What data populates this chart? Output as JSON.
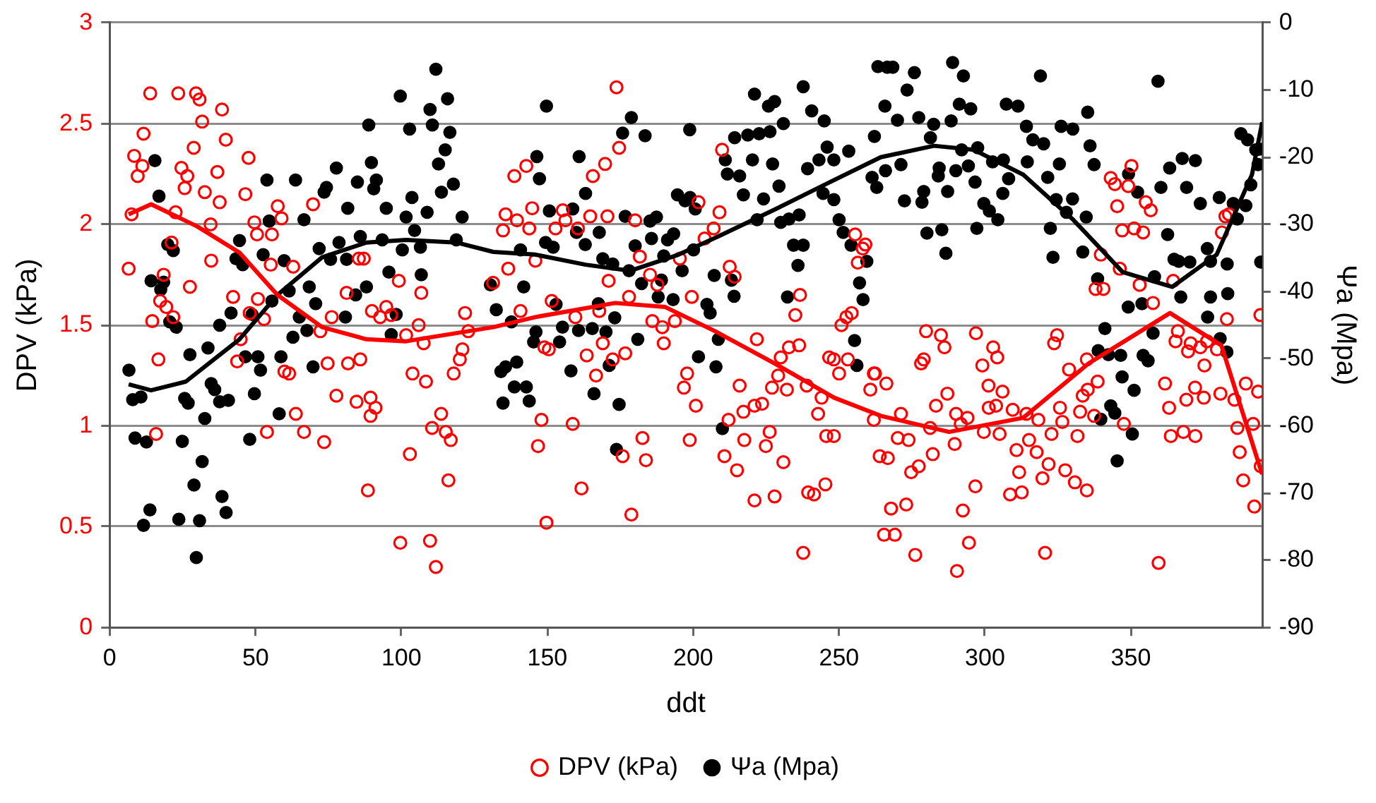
{
  "chart_data": {
    "type": "scatter",
    "xlabel": "ddt",
    "ylabel": "DPV (kPa)",
    "y2label": "Ψa (Mpa)",
    "legend": "bottom",
    "grid": "y",
    "xlim": [
      0,
      395
    ],
    "xticks": [
      0,
      50,
      100,
      150,
      200,
      250,
      300,
      350
    ],
    "ylim": [
      0,
      3
    ],
    "yticks": [
      0,
      0.5,
      1,
      1.5,
      2,
      2.5,
      3
    ],
    "y2lim": [
      -90,
      0
    ],
    "y2ticks": [
      -90,
      -80,
      -70,
      -60,
      -50,
      -40,
      -30,
      -20,
      -10,
      0
    ],
    "series": [
      {
        "name": "DPV (kPa)",
        "color": "#ff0000",
        "marker": "circle-open",
        "x": [
          13.9,
          23.5,
          29.6,
          30.8,
          38.5,
          31.7,
          11.6,
          8.4,
          11.2,
          9.6,
          24.6,
          26.6,
          28.8,
          39.8,
          47.6,
          36.9,
          25.7,
          32.6,
          37.7,
          46.5,
          7.5,
          22.6,
          34.6,
          21.2,
          34.8,
          6.5,
          18.5,
          27.5,
          17.3,
          19.4,
          21.8,
          14.6,
          42.3,
          48,
          44.9,
          16.7,
          43.7,
          15.9,
          53.9,
          49.6,
          50.5,
          55.6,
          57.6,
          58.9,
          55.2,
          52.9,
          50.8,
          59.9,
          61.5,
          63.8,
          66.6,
          73.5,
          69.7,
          62.9,
          76.1,
          72.2,
          74.7,
          77.7,
          81.2,
          85.4,
          87.1,
          81.7,
          85.9,
          84.6,
          89.4,
          91.1,
          89.4,
          88.5,
          89.9,
          92.7,
          94.8,
          96.5,
          99.1,
          99.6,
          101.6,
          105.9,
          106.8,
          107.6,
          103.8,
          108.4,
          102.9,
          109.8,
          111.8,
          110.5,
          113.6,
          115.2,
          116.9,
          116.1,
          117.9,
          120,
          120.9,
          121.8,
          122.9,
          173.7,
          174.6,
          169.8,
          165.6,
          142.8,
          138.7,
          144.8,
          135.7,
          134.8,
          139.6,
          143.8,
          145.9,
          136.6,
          131.4,
          152.8,
          155.3,
          156.2,
          160.5,
          164.7,
          170.6,
          180.1,
          181.7,
          171,
          178,
          151.5,
          159.6,
          167.8,
          140.8,
          149,
          150.5,
          163.5,
          166.7,
          169,
          172.4,
          176.7,
          178.8,
          161.7,
          149.7,
          146.8,
          148,
          158.7,
          182.6,
          183.8,
          175.8,
          185.2,
          187.7,
          186,
          189.4,
          193.7,
          189.9,
          195.4,
          199.5,
          201.8,
          203.9,
          207,
          209,
          209.9,
          212.5,
          214.2,
          197.9,
          196.8,
          200.9,
          198.8,
          210.7,
          215,
          212.1,
          215.9,
          217.2,
          221,
          223.6,
          217.5,
          226.2,
          224.9,
          230.9,
          221,
          227.9,
          221.8,
          227,
          229.1,
          232.1,
          230,
          232.8,
          236.3,
          235,
          236.6,
          238.9,
          242.8,
          244,
          237.7,
          239.4,
          241.4,
          245.3,
          245.6,
          248.2,
          246.6,
          248.2,
          250,
          253,
          250.8,
          252.5,
          254.3,
          255.5,
          258.1,
          256.4,
          260.7,
          262.3,
          263.9,
          265.4,
          259,
          261.9,
          266.2,
          261.9,
          266.7,
          270.1,
          273.8,
          274.7,
          277.3,
          267.8,
          273,
          269.1,
          276.1,
          271.2,
          282.1,
          281.2,
          279.8,
          278.1,
          279,
          284.9,
          286.1,
          283.2,
          287.1,
          290.1,
          291.7,
          294,
          289.6,
          296.7,
          292.4,
          294.5,
          290.4,
          296.9,
          299.1,
          302.8,
          304.2,
          301.2,
          306,
          301.3,
          303.8,
          309.5,
          299.6,
          305,
          310.8,
          311.7,
          308.6,
          312.6,
          315.1,
          317.7,
          319.7,
          321.8,
          327.5,
          330.8,
          334.9,
          320.6,
          314.2,
          318.3,
          322.8,
          325.7,
          326.5,
          331.7,
          332.6,
          337.4,
          333.5,
          335.2,
          338.6,
          328.8,
          334.9,
          323.7,
          324.7,
          347.6,
          339.7,
          337.9,
          340.6,
          343.1,
          344.5,
          350.2,
          349.1,
          345.3,
          347,
          351.1,
          354.2,
          355.1,
          356.8,
          346.2,
          353,
          357.6,
          364.5,
          382.4,
          383.6,
          381.2,
          382.9,
          394.4,
          365.3,
          366.1,
          369.6,
          370.5,
          373.8,
          375.2,
          376.1,
          379.5,
          361.7,
          363.1,
          369,
          372,
          375,
          380.7,
          385.5,
          389.4,
          393.6,
          391.9,
          386.5,
          387.3,
          388.5,
          392.3,
          394.5,
          363.7,
          368,
          372.1,
          359.5
        ],
        "values": [
          2.65,
          2.65,
          2.65,
          2.62,
          2.57,
          2.51,
          2.45,
          2.34,
          2.29,
          2.24,
          2.28,
          2.24,
          2.38,
          2.42,
          2.33,
          2.26,
          2.18,
          2.16,
          2.11,
          2.15,
          2.05,
          2.06,
          2.0,
          1.91,
          1.82,
          1.78,
          1.75,
          1.69,
          1.62,
          1.59,
          1.54,
          1.52,
          1.64,
          1.56,
          1.43,
          1.33,
          1.32,
          0.96,
          0.97,
          2.01,
          1.95,
          1.95,
          2.09,
          2.03,
          1.8,
          1.53,
          1.63,
          1.27,
          1.26,
          1.06,
          0.97,
          0.92,
          2.1,
          1.79,
          1.54,
          1.47,
          1.31,
          1.15,
          1.66,
          1.83,
          1.83,
          1.31,
          1.33,
          1.12,
          1.14,
          1.09,
          1.05,
          0.68,
          1.57,
          1.54,
          1.59,
          1.55,
          1.72,
          0.42,
          1.45,
          1.5,
          1.66,
          1.41,
          1.26,
          1.22,
          0.86,
          0.43,
          0.3,
          0.99,
          1.06,
          0.97,
          0.93,
          0.73,
          1.26,
          1.33,
          1.38,
          1.56,
          1.47,
          2.68,
          2.38,
          2.3,
          2.24,
          2.29,
          2.24,
          2.08,
          2.05,
          1.97,
          2.02,
          1.98,
          1.82,
          1.78,
          1.71,
          1.98,
          2.07,
          2.02,
          1.98,
          2.04,
          2.04,
          2.02,
          1.84,
          1.72,
          1.64,
          1.62,
          1.54,
          1.57,
          1.57,
          1.39,
          1.38,
          1.35,
          1.25,
          1.41,
          1.33,
          1.36,
          0.56,
          0.69,
          0.52,
          0.9,
          1.03,
          1.01,
          0.94,
          0.83,
          0.85,
          1.75,
          1.7,
          1.52,
          1.49,
          1.52,
          1.41,
          1.83,
          1.64,
          2.11,
          1.93,
          1.98,
          2.06,
          2.37,
          1.79,
          1.74,
          1.26,
          1.19,
          1.1,
          0.93,
          0.85,
          0.78,
          1.03,
          1.2,
          1.07,
          1.1,
          1.11,
          0.93,
          0.97,
          0.9,
          0.82,
          0.63,
          0.65,
          1.43,
          1.19,
          1.25,
          1.18,
          1.34,
          1.39,
          1.4,
          1.55,
          1.65,
          1.2,
          1.06,
          1.14,
          0.37,
          0.67,
          0.66,
          0.71,
          0.95,
          0.95,
          1.34,
          1.33,
          1.26,
          1.33,
          1.5,
          1.54,
          1.56,
          1.95,
          1.88,
          1.81,
          1.18,
          1.26,
          0.85,
          0.46,
          1.9,
          1.26,
          1.21,
          1.03,
          0.84,
          0.94,
          0.93,
          0.77,
          0.8,
          0.59,
          0.61,
          0.46,
          0.36,
          1.06,
          0.86,
          0.99,
          1.47,
          1.31,
          1.33,
          1.45,
          1.39,
          1.1,
          1.16,
          1.06,
          1.01,
          1.04,
          0.91,
          0.7,
          0.58,
          0.42,
          0.28,
          1.46,
          1.3,
          1.39,
          1.34,
          1.2,
          1.17,
          1.09,
          1.1,
          1.08,
          0.97,
          0.96,
          0.88,
          0.77,
          0.66,
          0.67,
          0.93,
          0.87,
          0.74,
          0.81,
          0.78,
          0.72,
          0.68,
          0.37,
          1.06,
          1.03,
          0.96,
          1.09,
          1.02,
          0.95,
          1.07,
          1.05,
          1.15,
          1.18,
          1.22,
          1.28,
          1.33,
          1.41,
          1.45,
          1.01,
          1.85,
          1.68,
          1.68,
          2.23,
          2.2,
          2.29,
          2.19,
          2.09,
          1.97,
          1.98,
          1.96,
          2.11,
          2.07,
          1.78,
          1.7,
          1.61,
          1.72,
          2.04,
          2.05,
          1.96,
          1.53,
          1.55,
          1.42,
          1.47,
          1.37,
          1.41,
          1.39,
          1.3,
          1.42,
          1.38,
          1.21,
          1.09,
          1.13,
          1.19,
          1.14,
          1.16,
          1.13,
          1.21,
          1.17,
          1.01,
          0.99,
          0.87,
          0.73,
          0.6,
          0.8,
          0.95,
          0.97,
          0.95,
          0.32
        ]
      },
      {
        "name": "Ψa (Mpa)",
        "color": "#000000",
        "axis": "y2",
        "marker": "circle",
        "x": [
          111.8,
          99.6,
          115.8,
          109.8,
          88.8,
          102.8,
          110.6,
          116.6,
          115,
          112.7,
          89.7,
          15.5,
          77.7,
          53.9,
          63.7,
          74.3,
          84.9,
          91.4,
          90.5,
          117.8,
          113.7,
          16.9,
          73.5,
          103.6,
          94.8,
          81.6,
          108.8,
          54.7,
          66.6,
          120.8,
          101.6,
          104.5,
          85.9,
          78.6,
          93.4,
          100.3,
          106.5,
          118.8,
          19.9,
          21.8,
          71.8,
          44.5,
          43.3,
          45.6,
          52.6,
          59.8,
          75.7,
          81.2,
          95.7,
          106.8,
          14.2,
          18.5,
          17.5,
          68.4,
          61.5,
          84.3,
          88,
          55.6,
          70.6,
          20.6,
          22.8,
          41.6,
          48.8,
          65,
          37.7,
          98.2,
          80.8,
          62.8,
          67.6,
          96.5,
          33.7,
          27.5,
          46.5,
          50.8,
          58.7,
          6.6,
          51.7,
          69.7,
          34.8,
          36,
          25.7,
          26.9,
          7.9,
          10.7,
          37.7,
          40.7,
          49.6,
          32.6,
          58.1,
          8.7,
          12.6,
          24.9,
          48,
          31.7,
          28.9,
          38.5,
          39.9,
          13.8,
          11.6,
          23.7,
          30.8,
          29.7,
          149.7,
          178.8,
          175.8,
          183.5,
          198.8,
          146.4,
          147.3,
          160.9,
          163.1,
          150.7,
          158.7,
          160,
          167.8,
          176.7,
          185.2,
          187.4,
          193.3,
          194.6,
          197.2,
          198.9,
          200.7,
          185.7,
          191.2,
          149.4,
          152,
          163,
          140.8,
          169,
          172.4,
          180.1,
          178,
          189.9,
          196.2,
          182.3,
          189.1,
          200.1,
          141.9,
          130.5,
          132.5,
          137.7,
          153,
          167.5,
          173.1,
          188,
          193.1,
          204.7,
          205.8,
          207.2,
          213.1,
          214,
          155.2,
          160.7,
          165.4,
          170.1,
          146.1,
          145.3,
          154.2,
          181,
          134.1,
          139.5,
          135.7,
          138.7,
          142.8,
          143.8,
          134.8,
          158.1,
          166,
          171.2,
          174.6,
          201.8,
          207.8,
          208.6,
          173.7,
          210,
          221,
          225.8,
          227.9,
          230.9,
          237.7,
          240.6,
          244.9,
          214.2,
          218.7,
          222.6,
          226.3,
          211,
          220.3,
          227.2,
          211.7,
          215.9,
          239.2,
          243.1,
          245.9,
          248.2,
          253.3,
          229.4,
          217.2,
          224.1,
          221.9,
          230,
          232.8,
          236.3,
          244.5,
          248.2,
          250,
          251.4,
          234.4,
          237.7,
          235.9,
          254.1,
          259.5,
          257,
          258.2,
          232.3,
          255.3,
          256.1,
          263.3,
          262.1,
          261.3,
          266.5,
          268.4,
          288.9,
          292.6,
          319,
          359.3,
          275.8,
          273.3,
          265.7,
          291.2,
          295.1,
          307.3,
          311.3,
          270,
          277.3,
          288.4,
          282.4,
          314.2,
          326.1,
          330.1,
          335.2,
          281.3,
          316.4,
          320.1,
          336,
          292,
          297.5,
          302.6,
          306.3,
          314.5,
          271.2,
          265.9,
          284.3,
          294.3,
          290,
          325.5,
          337.4,
          284,
          321.5,
          296.6,
          308.1,
          262.9,
          279,
          287.2,
          306.1,
          272.4,
          278.4,
          299.6,
          324.4,
          330,
          301.5,
          304.4,
          327.9,
          334.7,
          280.1,
          285.2,
          297.2,
          322.4,
          286.6,
          323.3,
          333.5,
          338.6,
          349.2,
          352.3,
          360.3,
          363.3,
          367.6,
          372.1,
          369.1,
          373.8,
          380.3,
          387.7,
          390,
          392.8,
          394,
          393.6,
          391.1,
          385.1,
          389.4,
          386.5,
          394.5,
          362.6,
          364.8,
          370.2,
          367.1,
          366.4,
          376.2,
          377.3,
          383,
          377.3,
          383.2,
          376.3,
          380.6,
          382.9,
          358.1,
          357.6,
          353.8,
          349.1,
          341.1,
          338.8,
          342.3,
          346.5,
          354.2,
          355.9,
          347,
          351.1,
          343.1,
          339.7,
          344.5,
          350.5,
          345.3
        ],
        "values": [
          -6.9,
          -10.9,
          -11.3,
          -12.9,
          -15.2,
          -15.8,
          -15.2,
          -16.3,
          -18.9,
          -21,
          -20.8,
          -20.5,
          -21.6,
          -23.4,
          -23.4,
          -24.5,
          -23.7,
          -23.4,
          -24.7,
          -24,
          -25.2,
          -25.8,
          -25.2,
          -26,
          -27.6,
          -27.6,
          -28.2,
          -29.5,
          -29.3,
          -28.9,
          -28.9,
          -30.9,
          -31.8,
          -32.7,
          -32.3,
          -33.8,
          -33.4,
          -32.3,
          -33,
          -33.9,
          -33.6,
          -32.4,
          -35.1,
          -36,
          -34.5,
          -35.4,
          -35.2,
          -35.2,
          -37.1,
          -37.5,
          -38.4,
          -38.6,
          -39.7,
          -39.3,
          -39.9,
          -40.5,
          -39.3,
          -41.4,
          -41.8,
          -44.5,
          -45.3,
          -43.2,
          -43.4,
          -43.8,
          -45,
          -43.4,
          -43.8,
          -46.8,
          -45.8,
          -46.4,
          -48.4,
          -49.4,
          -49.7,
          -49.7,
          -49.7,
          -51.7,
          -51.7,
          -51.2,
          -53.7,
          -54.6,
          -55.9,
          -56.6,
          -56.1,
          -55.7,
          -56.4,
          -56.2,
          -55.2,
          -58.9,
          -58.2,
          -61.8,
          -62.4,
          -62.3,
          -62,
          -65.3,
          -68.8,
          -70.5,
          -72.9,
          -72.5,
          -74.8,
          -73.9,
          -74.1,
          -79.6,
          -12.4,
          -14.1,
          -16.4,
          -16.8,
          -15.9,
          -19.9,
          -23.2,
          -19.9,
          -25.4,
          -28,
          -27.7,
          -31.2,
          -31.2,
          -28.8,
          -29.5,
          -28.9,
          -31.4,
          -25.6,
          -26.5,
          -26,
          -27.7,
          -32.1,
          -32.3,
          -32.7,
          -33.4,
          -33,
          -33.8,
          -35.1,
          -35.9,
          -33.2,
          -36.9,
          -34.7,
          -36.9,
          -38.8,
          -38.3,
          -33.8,
          -39.3,
          -39,
          -42.7,
          -44.5,
          -41.9,
          -41.8,
          -43.9,
          -40.8,
          -41.2,
          -41.9,
          -43.2,
          -37.6,
          -38.3,
          -40.7,
          -45.3,
          -45.8,
          -45.5,
          -46,
          -46,
          -47.5,
          -47.5,
          -47.1,
          -51.9,
          -50.5,
          -51.2,
          -54.2,
          -54.2,
          -56.3,
          -56.6,
          -51.8,
          -55.2,
          -51,
          -56.8,
          -49.7,
          -51.2,
          -47.1,
          -63.5,
          -60.4,
          -10.6,
          -12.4,
          -11.7,
          -15,
          -9.5,
          -13.1,
          -14.6,
          -17.1,
          -16.7,
          -16.5,
          -16.2,
          -20.4,
          -20.4,
          -21,
          -22.5,
          -22.8,
          -21.7,
          -20.4,
          -18.5,
          -20.4,
          -19.1,
          -24.3,
          -25.6,
          -26.2,
          -29.3,
          -29.7,
          -29.2,
          -28.6,
          -25.4,
          -26.3,
          -29.3,
          -31.2,
          -33.1,
          -33.1,
          -36.1,
          -33.1,
          -35.5,
          -38.7,
          -41.2,
          -40.8,
          -47.3,
          -51,
          -6.5,
          -16.9,
          -23,
          -6.6,
          -6.6,
          -5.9,
          -7.9,
          -7.9,
          -8.7,
          -7.4,
          -10,
          -12.4,
          -12.1,
          -12.8,
          -12.1,
          -12.4,
          -14.5,
          -14.1,
          -14.6,
          -15.1,
          -15.4,
          -15.4,
          -15.8,
          -13.3,
          -17.1,
          -17.4,
          -18,
          -18.3,
          -18.9,
          -18.6,
          -20.7,
          -20.4,
          -20.7,
          -21.1,
          -22,
          -21.6,
          -21.3,
          -22,
          -21,
          -21.1,
          -22.8,
          -23,
          -23.7,
          -23.2,
          -24.5,
          -25.1,
          -25.1,
          -25.4,
          -26.5,
          -26.7,
          -26.9,
          -26.3,
          -26.2,
          -28,
          -29.3,
          -28.2,
          -28.9,
          -31.3,
          -30.8,
          -30.6,
          -30.6,
          -34.3,
          -34.9,
          -34.1,
          -38.1,
          -22.5,
          -25.2,
          -24.5,
          -21.6,
          -20.2,
          -20.5,
          -24.5,
          -26.9,
          -26,
          -16.5,
          -17.4,
          -18.9,
          -18.8,
          -21.1,
          -24.1,
          -26.9,
          -27.2,
          -29.2,
          -35.6,
          -31.5,
          -35.2,
          -35.6,
          -40.8,
          -35.5,
          -33.6,
          -35.5,
          -35.9,
          -40.8,
          -40.3,
          -43.8,
          -47,
          -49,
          -37.8,
          -46.2,
          -41.8,
          -42.3,
          -45.5,
          -48.8,
          -49.4,
          -49.5,
          -49.5,
          -50.3,
          -52.7,
          -54.7,
          -57,
          -59,
          -58.1,
          -61.2,
          -65.2
        ]
      },
      {
        "type": "line",
        "color": "#ff0000",
        "marker": "none",
        "line_style": "solid",
        "x": [
          6.5,
          14.2,
          30,
          44.5,
          57.5,
          72.8,
          88,
          101.6,
          131.5,
          145.9,
          173.2,
          190.4,
          207.5,
          227.9,
          248.3,
          264.3,
          287.7,
          313.1,
          335.5,
          363.4,
          381,
          395
        ],
        "values": [
          2.05,
          2.1,
          1.99,
          1.86,
          1.65,
          1.49,
          1.43,
          1.42,
          1.49,
          1.54,
          1.61,
          1.59,
          1.47,
          1.31,
          1.14,
          1.05,
          0.97,
          1.04,
          1.31,
          1.56,
          1.4,
          0.76
        ]
      },
      {
        "type": "line",
        "color": "#000000",
        "axis": "y2",
        "marker": "none",
        "line_style": "solid",
        "x": [
          6.5,
          14.2,
          26.1,
          44.5,
          57.5,
          72.8,
          88,
          101.6,
          118.8,
          131.5,
          145.9,
          163.1,
          178.5,
          195,
          210,
          227.9,
          245,
          264.3,
          282.5,
          296.2,
          313.1,
          330.2,
          347.2,
          364.2,
          379.4,
          391.5,
          395
        ],
        "values": [
          -53.8,
          -54.7,
          -53.4,
          -47.1,
          -40.5,
          -34.9,
          -32.7,
          -32.3,
          -32.7,
          -34.1,
          -34.5,
          -36,
          -36.9,
          -34.5,
          -31.5,
          -27.8,
          -24.1,
          -20,
          -18.3,
          -18.9,
          -22.6,
          -29.3,
          -37.1,
          -39.3,
          -34.5,
          -22.6,
          -14.8
        ]
      }
    ]
  }
}
